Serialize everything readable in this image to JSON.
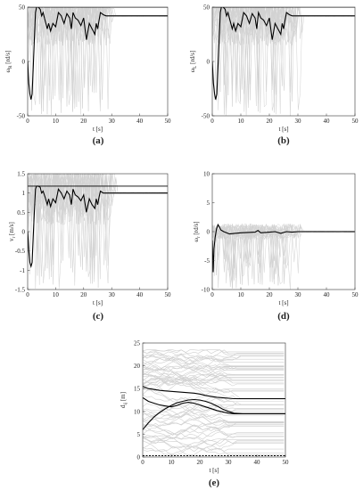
{
  "chart_data": [
    {
      "id": "a",
      "type": "line",
      "caption": "(a)",
      "xlabel": "t [s]",
      "ylabel": "ω",
      "ylabel_sub": "R",
      "ylabel_unit": "[rd/s]",
      "xlim": [
        0,
        50
      ],
      "ylim": [
        -50,
        50
      ],
      "xticks": [
        0,
        10,
        20,
        30,
        40,
        50
      ],
      "yticks": [
        -50,
        0,
        50
      ],
      "grid": false,
      "series": [
        {
          "style": "saturation-limit",
          "color": "#000000",
          "x": [
            0,
            50
          ],
          "y": [
            50,
            50
          ]
        },
        {
          "style": "mean",
          "color": "#000000",
          "x": [
            0,
            0.4,
            0.8,
            1.2,
            1.6,
            2.0,
            2.4,
            2.8,
            3.2,
            3.8,
            4.5,
            5.0,
            5.5,
            6.2,
            7.0,
            7.5,
            8.2,
            9.0,
            10.0,
            11.0,
            12.0,
            13.0,
            14.0,
            15.0,
            15.6,
            16.2,
            17.0,
            18.0,
            19.0,
            20.0,
            21.0,
            22.0,
            23.0,
            24.0,
            24.5,
            25.0,
            25.5,
            26.0,
            27.0,
            28.0,
            29.0,
            30.0,
            35.0,
            50.0
          ],
          "y": [
            0,
            -20,
            -30,
            -35,
            -30,
            -5,
            20,
            45,
            50,
            50,
            48,
            42,
            45,
            38,
            30,
            35,
            28,
            35,
            32,
            45,
            42,
            35,
            44,
            40,
            30,
            45,
            40,
            38,
            33,
            40,
            20,
            35,
            30,
            25,
            35,
            30,
            38,
            45,
            43,
            42,
            42,
            42,
            42,
            42
          ]
        }
      ]
    },
    {
      "id": "b",
      "type": "line",
      "caption": "(b)",
      "xlabel": "t [s]",
      "ylabel": "ω",
      "ylabel_sub": "L",
      "ylabel_unit": "[rd/s]",
      "xlim": [
        0,
        50
      ],
      "ylim": [
        -50,
        50
      ],
      "xticks": [
        0,
        10,
        20,
        30,
        40,
        50
      ],
      "yticks": [
        -50,
        0,
        50
      ],
      "grid": false,
      "series": [
        {
          "style": "saturation-limit",
          "color": "#000000",
          "x": [
            0,
            50
          ],
          "y": [
            50,
            50
          ]
        },
        {
          "style": "mean",
          "color": "#000000",
          "x": [
            0,
            0.4,
            0.8,
            1.2,
            1.6,
            2.0,
            2.4,
            2.8,
            3.2,
            3.8,
            4.5,
            5.0,
            5.5,
            6.2,
            7.0,
            7.5,
            8.2,
            9.0,
            10.0,
            11.0,
            12.0,
            13.0,
            14.0,
            15.0,
            15.6,
            16.2,
            17.0,
            18.0,
            19.0,
            20.0,
            21.0,
            22.0,
            23.0,
            24.0,
            24.5,
            25.0,
            25.5,
            26.0,
            27.0,
            28.0,
            29.0,
            30.0,
            35.0,
            50.0
          ],
          "y": [
            0,
            -20,
            -30,
            -35,
            -30,
            -5,
            20,
            45,
            50,
            50,
            48,
            42,
            45,
            38,
            30,
            35,
            28,
            35,
            32,
            45,
            42,
            35,
            44,
            40,
            30,
            45,
            40,
            38,
            33,
            40,
            20,
            35,
            30,
            25,
            35,
            30,
            38,
            45,
            43,
            42,
            42,
            42,
            42,
            42
          ]
        }
      ]
    },
    {
      "id": "c",
      "type": "line",
      "caption": "(c)",
      "xlabel": "t [s]",
      "ylabel": "v",
      "ylabel_sub": "r",
      "ylabel_unit": "[m/s]",
      "xlim": [
        0,
        50
      ],
      "ylim": [
        -1.5,
        1.5
      ],
      "xticks": [
        0,
        10,
        20,
        30,
        40,
        50
      ],
      "yticks": [
        -1.5,
        -1,
        -0.5,
        0,
        0.5,
        1,
        1.5
      ],
      "grid": false,
      "series": [
        {
          "style": "saturation-limit",
          "color": "#000000",
          "x": [
            0,
            50
          ],
          "y": [
            1.18,
            1.18
          ]
        },
        {
          "style": "mean",
          "color": "#000000",
          "x": [
            0,
            0.4,
            0.8,
            1.2,
            1.6,
            2.0,
            2.4,
            2.8,
            3.2,
            3.8,
            4.5,
            5.0,
            5.5,
            6.2,
            7.0,
            7.5,
            8.2,
            9.0,
            10.0,
            11.0,
            12.0,
            13.0,
            14.0,
            15.0,
            15.6,
            16.2,
            17.0,
            18.0,
            19.0,
            20.0,
            21.0,
            22.0,
            23.0,
            24.0,
            24.5,
            25.0,
            25.5,
            26.0,
            27.0,
            28.0,
            29.0,
            30.0,
            35.0,
            50.0
          ],
          "y": [
            0,
            -0.5,
            -0.8,
            -0.9,
            -0.8,
            -0.1,
            0.5,
            1.1,
            1.18,
            1.18,
            1.15,
            1.0,
            1.05,
            0.9,
            0.7,
            0.85,
            0.65,
            0.85,
            0.75,
            1.1,
            1.0,
            0.85,
            1.05,
            0.95,
            0.7,
            1.1,
            0.95,
            0.9,
            0.8,
            0.95,
            0.5,
            0.85,
            0.7,
            0.6,
            0.85,
            0.7,
            0.9,
            1.05,
            1.0,
            1.0,
            1.0,
            1.0,
            1.0,
            1.0
          ]
        }
      ]
    },
    {
      "id": "d",
      "type": "line",
      "caption": "(d)",
      "xlabel": "t [s]",
      "ylabel": "ω",
      "ylabel_sub": "r",
      "ylabel_unit": "[rd/s]",
      "xlim": [
        0,
        50
      ],
      "ylim": [
        -10,
        10
      ],
      "xticks": [
        0,
        10,
        20,
        30,
        40,
        50
      ],
      "yticks": [
        -10,
        -5,
        0,
        5,
        10
      ],
      "grid": false,
      "series": [
        {
          "style": "mean",
          "color": "#000000",
          "x": [
            0,
            0.3,
            0.6,
            1.0,
            1.5,
            2.0,
            2.5,
            3.0,
            4.0,
            5.0,
            6.0,
            8.0,
            10.0,
            15.0,
            16.0,
            17.0,
            20.0,
            22.0,
            24.0,
            26.0,
            28.0,
            30.0,
            35.0,
            50.0
          ],
          "y": [
            -1.5,
            -7.0,
            -3.0,
            -1.0,
            0.5,
            1.2,
            0.8,
            0.3,
            0.0,
            -0.2,
            -0.4,
            -0.3,
            -0.2,
            -0.1,
            0.2,
            -0.2,
            -0.1,
            0.0,
            -0.3,
            0.0,
            -0.1,
            0.0,
            0.0,
            0.0
          ]
        }
      ]
    },
    {
      "id": "e",
      "type": "line",
      "caption": "(e)",
      "xlabel": "t [s]",
      "ylabel": "d",
      "ylabel_sub": "ij",
      "ylabel_unit": "[m]",
      "xlim": [
        0,
        50
      ],
      "ylim": [
        0,
        25
      ],
      "xticks": [
        0,
        10,
        20,
        30,
        40,
        50
      ],
      "yticks": [
        0,
        5,
        10,
        15,
        20,
        25
      ],
      "grid": false,
      "series": [
        {
          "style": "threshold",
          "color": "#000000",
          "x": [
            0,
            50
          ],
          "y": [
            0.3,
            0.3
          ]
        },
        {
          "style": "mean",
          "color": "#000000",
          "x": [
            0,
            2,
            4,
            6,
            8,
            10,
            12,
            14,
            16,
            18,
            20,
            22,
            24,
            26,
            28,
            30,
            32,
            35,
            40,
            50
          ],
          "y": [
            15.5,
            15.0,
            14.8,
            14.6,
            14.5,
            14.4,
            14.3,
            14.2,
            14.1,
            14.0,
            13.8,
            13.5,
            13.3,
            13.1,
            13.0,
            12.9,
            12.8,
            12.8,
            12.8,
            12.8
          ]
        },
        {
          "style": "mean",
          "color": "#000000",
          "x": [
            0,
            2,
            4,
            6,
            8,
            10,
            12,
            14,
            16,
            18,
            20,
            22,
            24,
            26,
            28,
            30,
            32,
            35,
            40,
            50
          ],
          "y": [
            13.0,
            12.2,
            11.8,
            11.4,
            11.2,
            11.0,
            11.3,
            11.8,
            12.0,
            11.8,
            11.4,
            11.0,
            10.6,
            10.2,
            9.9,
            9.6,
            9.5,
            9.5,
            9.5,
            9.5
          ]
        },
        {
          "style": "mean",
          "color": "#000000",
          "x": [
            0,
            2,
            4,
            6,
            8,
            10,
            12,
            14,
            16,
            18,
            20,
            22,
            24,
            26,
            28,
            30,
            32,
            35,
            40,
            50
          ],
          "y": [
            6.0,
            7.5,
            8.8,
            9.8,
            10.6,
            11.3,
            11.9,
            12.2,
            12.5,
            12.6,
            12.5,
            12.2,
            11.8,
            11.2,
            10.5,
            10.0,
            9.6,
            9.5,
            9.5,
            9.5
          ]
        }
      ]
    }
  ]
}
